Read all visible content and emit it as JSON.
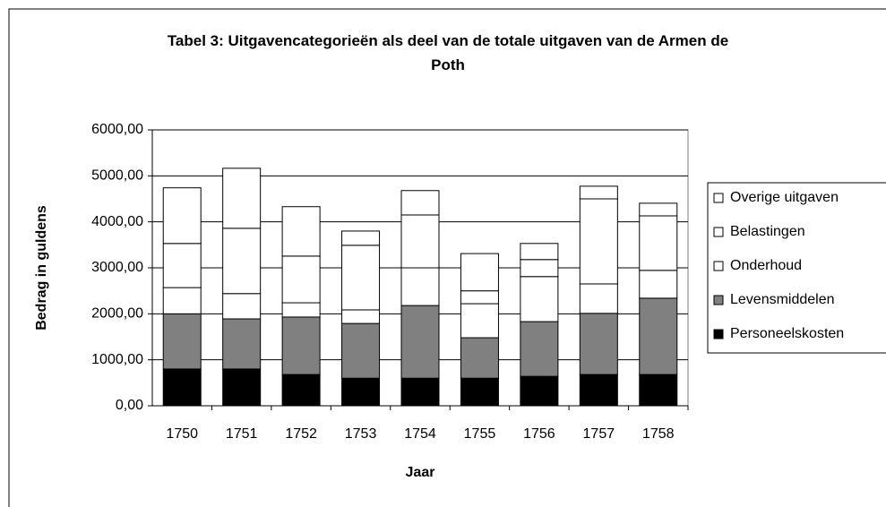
{
  "chart_data": {
    "type": "stacked_bar",
    "title": "Tabel 3: Uitgavencategorieën als deel van de totale uitgaven van de Armen de Poth",
    "x_label": "Jaar",
    "y_label": "Bedrag in guldens",
    "categories": [
      "1750",
      "1751",
      "1752",
      "1753",
      "1754",
      "1755",
      "1756",
      "1757",
      "1758"
    ],
    "series": [
      {
        "name": "Personeelskosten",
        "color": "#000000",
        "values": [
          800,
          800,
          680,
          600,
          600,
          600,
          640,
          680,
          680
        ]
      },
      {
        "name": "Levensmiddelen",
        "color": "#808080",
        "values": [
          1200,
          1090,
          1250,
          1190,
          1580,
          880,
          1190,
          1330,
          1660
        ]
      },
      {
        "name": "Onderhoud",
        "color": "#ffffff",
        "values": [
          570,
          550,
          310,
          295,
          820,
          740,
          980,
          640,
          605
        ]
      },
      {
        "name": "Belastingen",
        "color": "#ffffff",
        "values": [
          960,
          1420,
          1015,
          1405,
          1150,
          280,
          370,
          1850,
          1185
        ]
      },
      {
        "name": "Overige uitgaven",
        "color": "#ffffff",
        "values": [
          1210,
          1305,
          1075,
          310,
          530,
          810,
          350,
          275,
          275
        ]
      }
    ],
    "ylim": [
      0,
      6000
    ],
    "yticks": [
      {
        "value": 0,
        "label": "0,00"
      },
      {
        "value": 1000,
        "label": "1000,00"
      },
      {
        "value": 2000,
        "label": "2000,00"
      },
      {
        "value": 3000,
        "label": "3000,00"
      },
      {
        "value": 4000,
        "label": "4000,00"
      },
      {
        "value": 5000,
        "label": "5000,00"
      },
      {
        "value": 6000,
        "label": "6000,00"
      }
    ],
    "grid": true,
    "legend": "right"
  }
}
